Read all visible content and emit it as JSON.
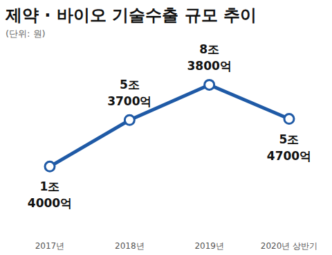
{
  "chart_data": {
    "type": "line",
    "title": "제약 · 바이오 기술수출 규모 추이",
    "subtitle": "(단위: 원)",
    "categories": [
      "2017년",
      "2018년",
      "2019년",
      "2020년 상반기"
    ],
    "values": [
      1400000000000,
      5370000000000,
      8380000000000,
      5470000000000
    ],
    "value_labels": [
      "1조 4000억",
      "5조 3700억",
      "8조 3800억",
      "5조 4700억"
    ],
    "color": "#1f5aa6",
    "marker": "circle",
    "data_labels": true,
    "tick_labels": "x",
    "grid": false,
    "ylim": [
      0,
      10000000000000
    ]
  }
}
